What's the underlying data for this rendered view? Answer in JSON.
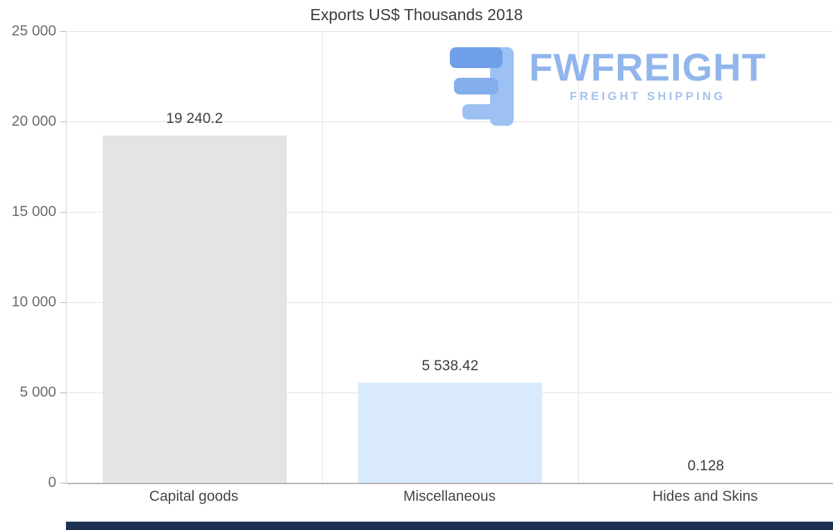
{
  "chart_data": {
    "type": "bar",
    "title": "Exports US$ Thousands 2018",
    "categories": [
      "Capital goods",
      "Miscellaneous",
      "Hides and Skins"
    ],
    "values": [
      19240.2,
      5538.42,
      0.128
    ],
    "value_labels": [
      "19 240.2",
      "5 538.42",
      "0.128"
    ],
    "ylim": [
      0,
      25000
    ],
    "ytick_labels": [
      "0",
      "5 000",
      "10 000",
      "15 000",
      "20 000",
      "25 000"
    ],
    "xlabel": "",
    "ylabel": "",
    "grid": true,
    "legend": "none",
    "bar_colors": [
      "#e4e4e4",
      "#d9eafc",
      "#d9eafc"
    ]
  },
  "logo": {
    "brand": "FWFREIGHT",
    "tagline": "FREIGHT SHIPPING"
  },
  "colors": {
    "title_text": "#3b3b3b",
    "axis_text": "#6b6b6b",
    "gridline": "#e3e3e3",
    "bar_gray": "#e4e4e4",
    "bar_blue": "#d9eafc",
    "logo_blue": "#92b6ec",
    "footer_strip": "#1d3252"
  }
}
